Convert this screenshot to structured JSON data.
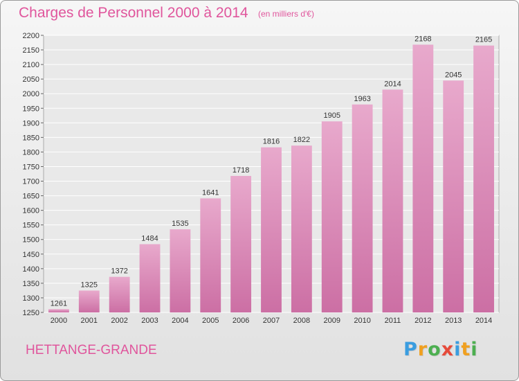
{
  "chart_data": {
    "type": "bar",
    "title": "Charges de Personnel 2000 à 2014",
    "subtitle": "(en milliers d'€)",
    "categories": [
      "2000",
      "2001",
      "2002",
      "2003",
      "2004",
      "2005",
      "2006",
      "2007",
      "2008",
      "2009",
      "2010",
      "2011",
      "2012",
      "2013",
      "2014"
    ],
    "values": [
      1261,
      1325,
      1372,
      1484,
      1535,
      1641,
      1718,
      1816,
      1822,
      1905,
      1963,
      2014,
      2168,
      2045,
      2165
    ],
    "ylim": [
      1250,
      2200
    ],
    "yticks": [
      1250,
      1300,
      1350,
      1400,
      1450,
      1500,
      1550,
      1600,
      1650,
      1700,
      1750,
      1800,
      1850,
      1900,
      1950,
      2000,
      2050,
      2100,
      2150,
      2200
    ],
    "grid": true,
    "legend": "none",
    "bar_color": "#cc6fa4",
    "bar_color_light": "#e8a9cc"
  },
  "footer": {
    "city": "HETTANGE-GRANDE"
  },
  "logo": {
    "letters": [
      "P",
      "r",
      "o",
      "x",
      "i",
      "t",
      "i"
    ],
    "colors": [
      "#3a9de0",
      "#f0a020",
      "#4caf50",
      "#e64a3a",
      "#3a9de0",
      "#f0a020",
      "#4caf50"
    ]
  },
  "colors": {
    "accent": "#e0559c"
  }
}
